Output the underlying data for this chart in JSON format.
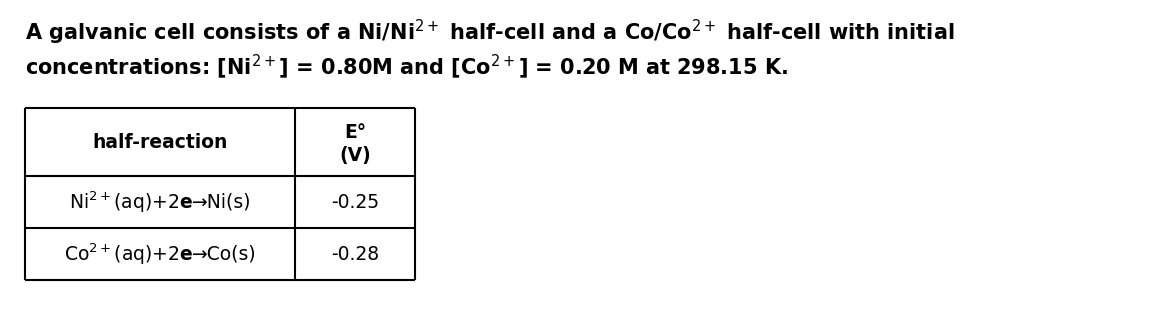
{
  "line1": "A galvanic cell consists of a Ni/Ni$^{2+}$ half-cell and a Co/Co$^{2+}$ half-cell with initial",
  "line2": "concentrations: [Ni$^{2+}$] = 0.80M and [Co$^{2+}$] = 0.20 M at 298.15 K.",
  "col1_header": "half-reaction",
  "col2_header_line1": "E°",
  "col2_header_line2": "(V)",
  "row1_col1a": "Ni$^{2+}$(aq)+2",
  "row1_col1b": "e",
  "row1_col1c": "→Ni(s)",
  "row1_col2": "-0.25",
  "row2_col1a": "Co$^{2+}$(aq)+2",
  "row2_col1b": "e",
  "row2_col1c": "→Co(s)",
  "row2_col2": "-0.28",
  "bg_color": "#ffffff",
  "text_color": "#000000",
  "table_line_color": "#000000",
  "title_fontsize": 15.0,
  "table_fontsize": 13.5,
  "header_fontsize": 13.5
}
